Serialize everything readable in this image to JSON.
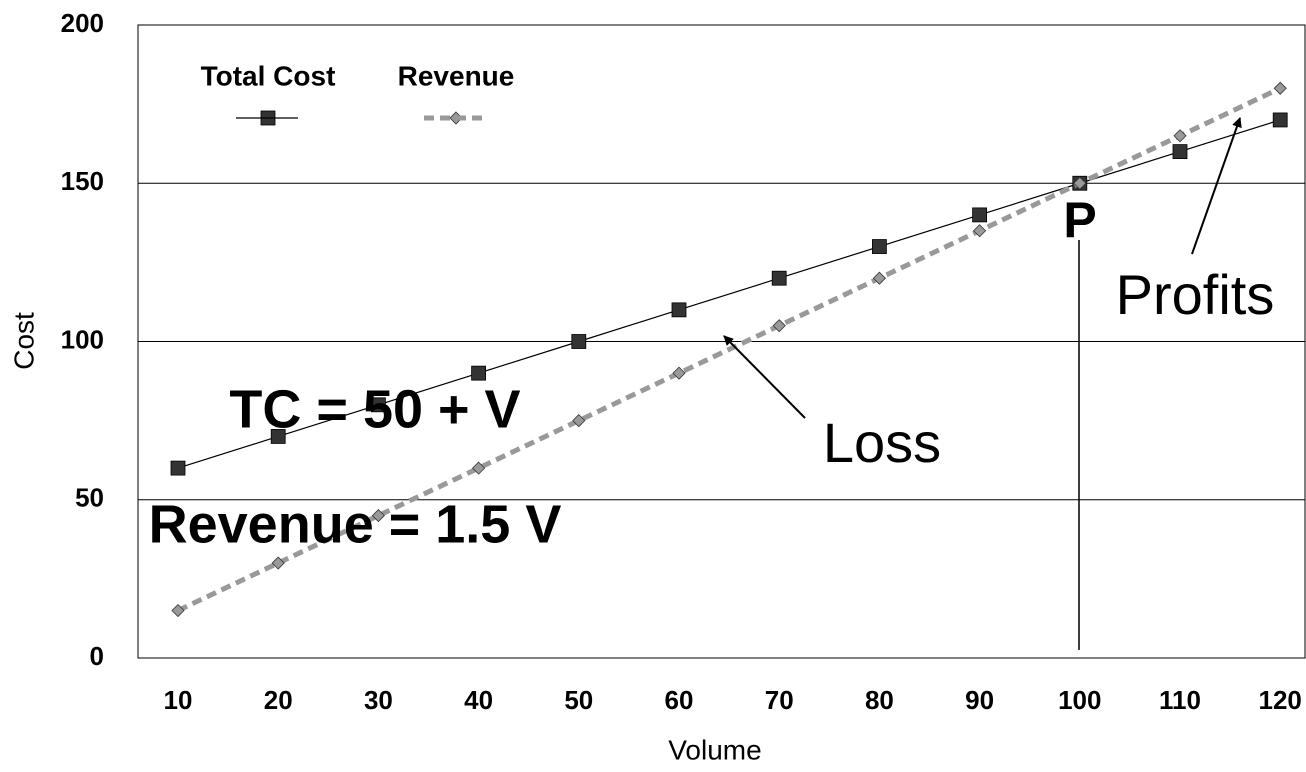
{
  "chart_data": {
    "type": "line",
    "x_label": "Volume",
    "y_label": "Cost",
    "categories": [
      "10",
      "20",
      "30",
      "40",
      "50",
      "60",
      "70",
      "80",
      "90",
      "100",
      "110",
      "120"
    ],
    "series": [
      {
        "name": "Total Cost",
        "color": "#333333",
        "values": [
          60,
          70,
          80,
          90,
          100,
          110,
          120,
          130,
          140,
          150,
          160,
          170
        ]
      },
      {
        "name": "Revenue",
        "color": "#999999",
        "values": [
          15,
          30,
          45,
          60,
          75,
          90,
          105,
          120,
          135,
          150,
          165,
          180
        ]
      }
    ],
    "ylim": [
      0,
      200
    ],
    "yticks": [
      0,
      50,
      100,
      150,
      200
    ],
    "grid": true,
    "annotations": [
      "TC = 50 + V",
      "Revenue = 1.5 V",
      "Loss",
      "Profits",
      "P"
    ]
  }
}
